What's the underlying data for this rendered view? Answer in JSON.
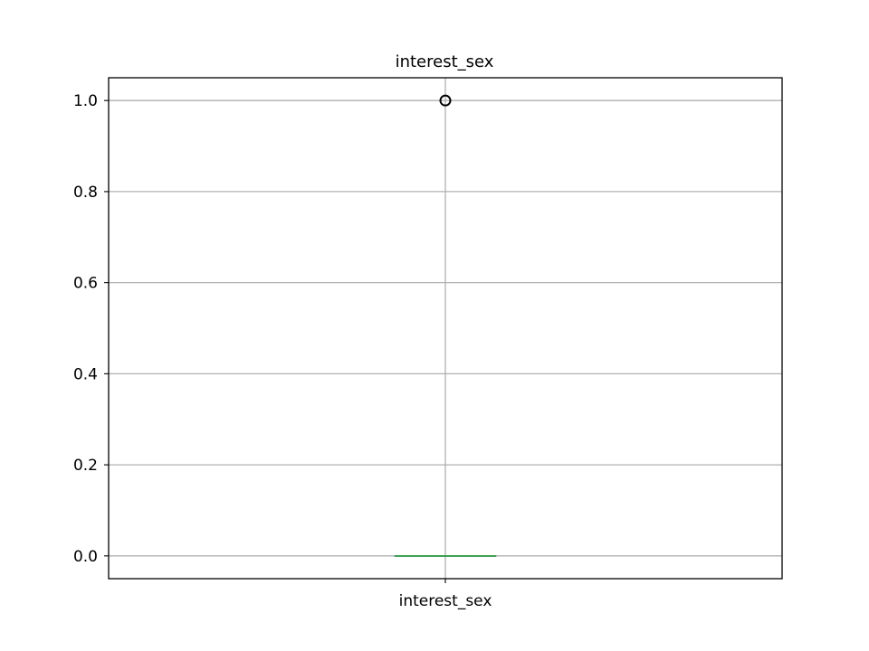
{
  "chart_data": {
    "type": "box",
    "title": "interest_sex",
    "xlabel": "",
    "ylabel": "",
    "categories": [
      "interest_sex"
    ],
    "boxes": [
      {
        "name": "interest_sex",
        "whislo": 0.0,
        "q1": 0.0,
        "median": 0.0,
        "q3": 0.0,
        "whishi": 0.0,
        "fliers": [
          1.0
        ]
      }
    ],
    "ylim": [
      -0.05,
      1.05
    ],
    "yticks": [
      0.0,
      0.2,
      0.4,
      0.6,
      0.8,
      1.0
    ],
    "ytick_labels": [
      "0.0",
      "0.2",
      "0.4",
      "0.6",
      "0.8",
      "1.0"
    ],
    "grid": true,
    "colors": {
      "grid": "#b0b0b0",
      "axes": "#000000",
      "median": "#2ca02c",
      "box": "#1f77b4",
      "flier": "#000000"
    }
  }
}
